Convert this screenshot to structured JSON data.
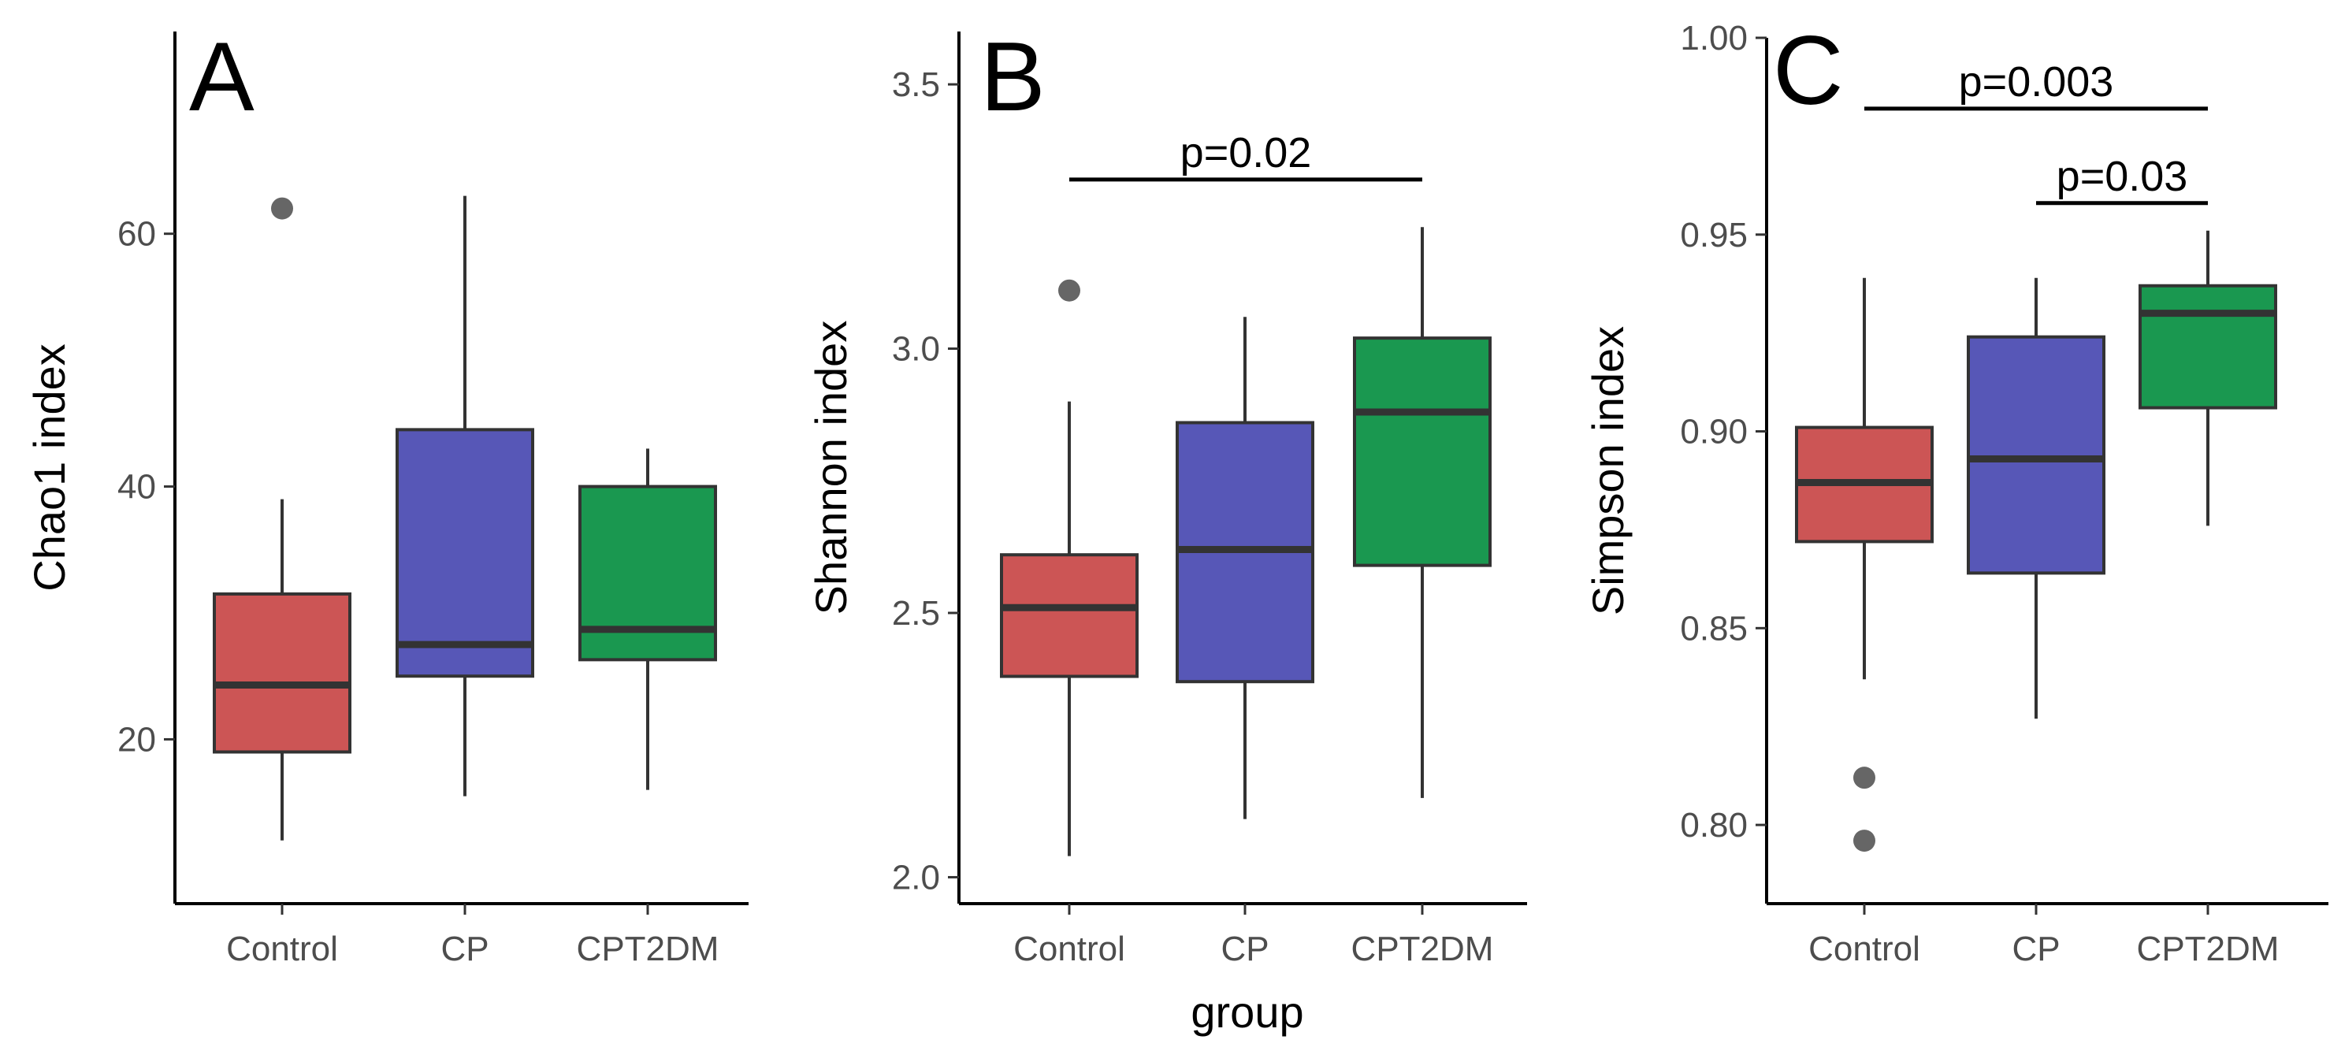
{
  "chart_data": [
    {
      "type": "boxplot",
      "panel": "A",
      "ylabel": "Chao1 index",
      "xlabel": "",
      "categories": [
        "Control",
        "CP",
        "CPT2DM"
      ],
      "ylim": [
        7,
        76
      ],
      "yticks": [
        20,
        40,
        60
      ],
      "colors": [
        "#CC5555",
        "#5757B7",
        "#1A9850"
      ],
      "boxes": [
        {
          "group": "Control",
          "whisker_low": 12,
          "q1": 19,
          "median": 24.3,
          "q3": 31.5,
          "whisker_high": 39,
          "outliers": [
            62
          ]
        },
        {
          "group": "CP",
          "whisker_low": 15.5,
          "q1": 25,
          "median": 27.5,
          "q3": 44.5,
          "whisker_high": 63,
          "outliers": []
        },
        {
          "group": "CPT2DM",
          "whisker_low": 16,
          "q1": 26.3,
          "median": 28.7,
          "q3": 40,
          "whisker_high": 43,
          "outliers": []
        }
      ],
      "significance": []
    },
    {
      "type": "boxplot",
      "panel": "B",
      "ylabel": "Shannon index",
      "xlabel": "group",
      "categories": [
        "Control",
        "CP",
        "CPT2DM"
      ],
      "ylim": [
        1.95,
        3.6
      ],
      "yticks": [
        2.0,
        2.5,
        3.0,
        3.5
      ],
      "tick_labels": [
        "2.0",
        "2.5",
        "3.0",
        "3.5"
      ],
      "colors": [
        "#CC5555",
        "#5757B7",
        "#1A9850"
      ],
      "boxes": [
        {
          "group": "Control",
          "whisker_low": 2.04,
          "q1": 2.38,
          "median": 2.51,
          "q3": 2.61,
          "whisker_high": 2.9,
          "outliers": [
            3.11
          ]
        },
        {
          "group": "CP",
          "whisker_low": 2.11,
          "q1": 2.37,
          "median": 2.62,
          "q3": 2.86,
          "whisker_high": 3.06,
          "outliers": []
        },
        {
          "group": "CPT2DM",
          "whisker_low": 2.15,
          "q1": 2.59,
          "median": 2.88,
          "q3": 3.02,
          "whisker_high": 3.23,
          "outliers": []
        }
      ],
      "significance": [
        {
          "from": "Control",
          "to": "CPT2DM",
          "label": "p=0.02",
          "y": 3.32
        }
      ]
    },
    {
      "type": "boxplot",
      "panel": "C",
      "ylabel": "Simpson index",
      "xlabel": "",
      "categories": [
        "Control",
        "CP",
        "CPT2DM"
      ],
      "ylim": [
        0.78,
        1.0
      ],
      "yticks": [
        0.8,
        0.85,
        0.9,
        0.95,
        1.0
      ],
      "tick_labels": [
        "0.80",
        "0.85",
        "0.90",
        "0.95",
        "1.00"
      ],
      "colors": [
        "#CC5555",
        "#5757B7",
        "#1A9850"
      ],
      "boxes": [
        {
          "group": "Control",
          "whisker_low": 0.837,
          "q1": 0.872,
          "median": 0.887,
          "q3": 0.901,
          "whisker_high": 0.939,
          "outliers": [
            0.812,
            0.796
          ]
        },
        {
          "group": "CP",
          "whisker_low": 0.827,
          "q1": 0.864,
          "median": 0.893,
          "q3": 0.924,
          "whisker_high": 0.939,
          "outliers": []
        },
        {
          "group": "CPT2DM",
          "whisker_low": 0.876,
          "q1": 0.906,
          "median": 0.93,
          "q3": 0.937,
          "whisker_high": 0.951,
          "outliers": []
        }
      ],
      "significance": [
        {
          "from": "Control",
          "to": "CPT2DM",
          "label": "p=0.003",
          "y": 0.982
        },
        {
          "from": "CP",
          "to": "CPT2DM",
          "label": "p=0.03",
          "y": 0.958
        }
      ]
    }
  ]
}
